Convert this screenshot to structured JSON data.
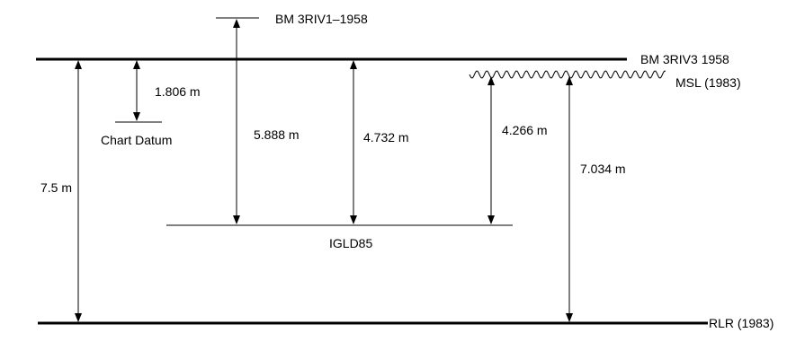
{
  "reference_levels": {
    "bm_3riv1_1958": "BM 3RIV1–1958",
    "bm_3riv3_1958": "BM 3RIV3 1958",
    "msl_1983": "MSL (1983)",
    "chart_datum": "Chart Datum",
    "igld85": "IGLD85",
    "rlr_1983": "RLR (1983)"
  },
  "measurements": {
    "bm3riv3_to_chart_datum": "1.806 m",
    "bm3riv1_to_igld85": "5.888 m",
    "bm3riv3_to_igld85": "4.732 m",
    "msl_to_igld85": "4.266 m",
    "msl_to_rlr": "7.034 m",
    "bm3riv3_to_rlr": "7.5 m"
  },
  "colors": {
    "ink": "#000000",
    "background": "#ffffff"
  }
}
